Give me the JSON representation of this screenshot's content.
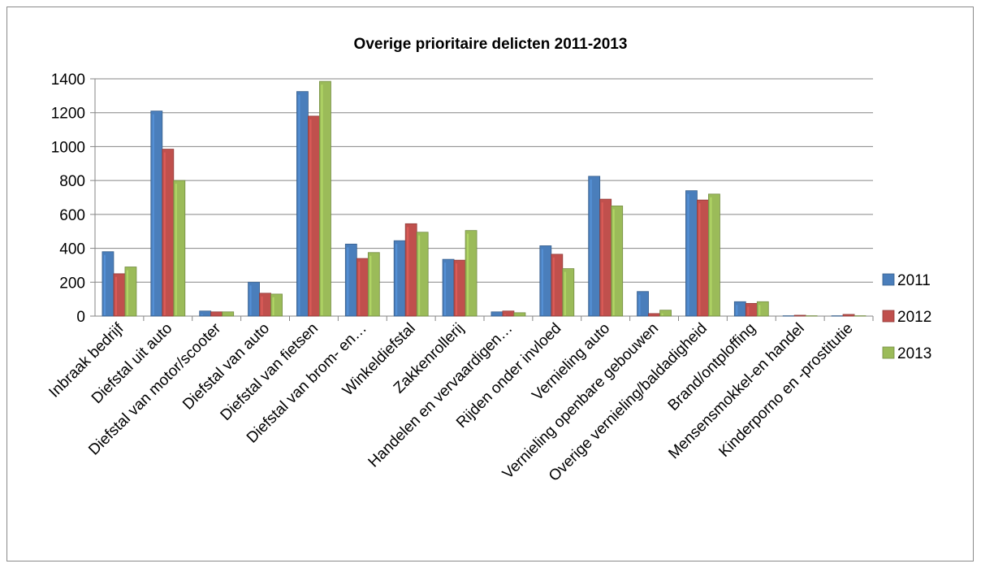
{
  "chart_data": {
    "type": "bar",
    "title": "Overige prioritaire delicten 2011-2013",
    "xlabel": "",
    "ylabel": "",
    "ylim": [
      0,
      1400
    ],
    "yticks": [
      0,
      200,
      400,
      600,
      800,
      1000,
      1200,
      1400
    ],
    "grid": true,
    "legend": "right",
    "categories": [
      "Inbraak bedrijf",
      "Diefstal uit auto",
      "Diefstal van motor/scooter",
      "Diefstal van auto",
      "Diefstal van fietsen",
      "Diefstal van brom- en…",
      "Winkeldiefstal",
      "Zakkenrollerij",
      "Handelen en vervaardigen…",
      "Rijden onder invloed",
      "Vernieling auto",
      "Vernieling openbare gebouwen",
      "Overige vernieling/baldadigheid",
      "Brand/ontploffing",
      "Mensensmokkel-en handel",
      "Kinderporno en -prostitutie"
    ],
    "series": [
      {
        "name": "2011",
        "color": "#4a7ebb",
        "values": [
          380,
          1210,
          30,
          200,
          1325,
          425,
          445,
          335,
          25,
          415,
          825,
          145,
          740,
          85,
          2,
          2
        ]
      },
      {
        "name": "2012",
        "color": "#c0504d",
        "values": [
          250,
          985,
          25,
          135,
          1180,
          340,
          545,
          330,
          30,
          365,
          690,
          15,
          685,
          75,
          5,
          10
        ]
      },
      {
        "name": "2013",
        "color": "#9bbb59",
        "values": [
          290,
          800,
          25,
          130,
          1385,
          375,
          495,
          505,
          20,
          280,
          650,
          35,
          720,
          85,
          2,
          2
        ]
      }
    ]
  }
}
